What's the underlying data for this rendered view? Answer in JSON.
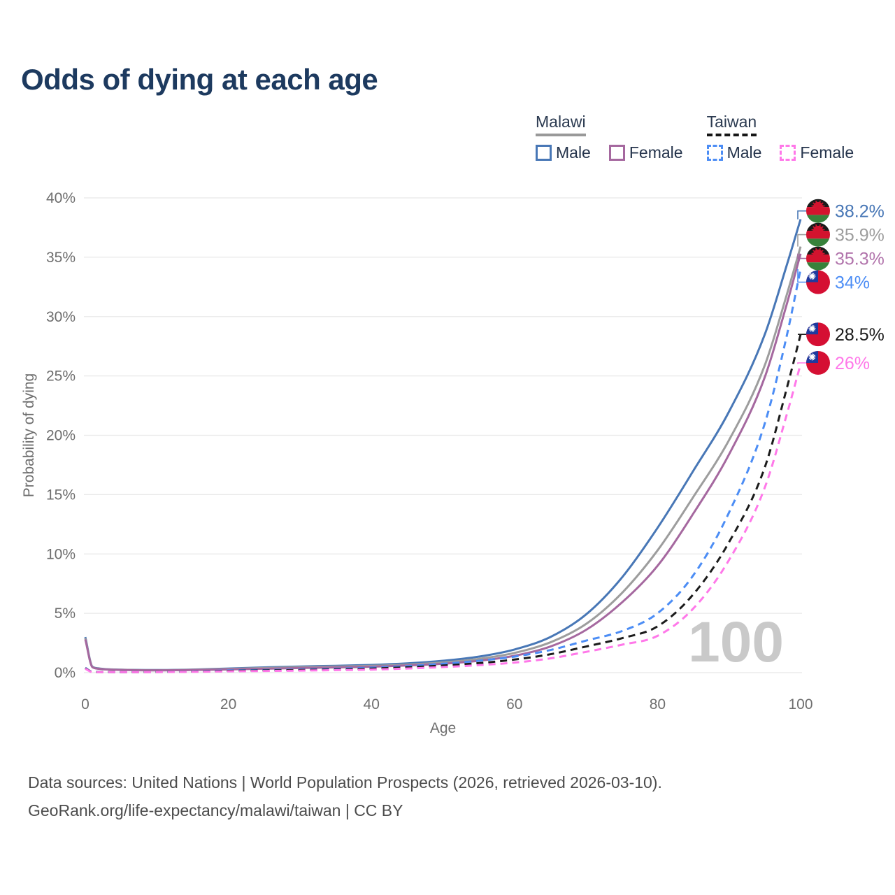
{
  "title": "Odds of dying at each age",
  "legend": {
    "groups": [
      {
        "name": "Malawi",
        "line_style": "solid",
        "underline_color": "#999999",
        "items": [
          {
            "label": "Male",
            "color": "#4877b6",
            "dash": false
          },
          {
            "label": "Female",
            "color": "#a5689f",
            "dash": false
          }
        ]
      },
      {
        "name": "Taiwan",
        "line_style": "dashed",
        "underline_color": "#161616",
        "items": [
          {
            "label": "Male",
            "color": "#4c8df5",
            "dash": true
          },
          {
            "label": "Female",
            "color": "#ff78e9",
            "dash": true
          }
        ]
      }
    ]
  },
  "chart_data": {
    "type": "line",
    "title": "Odds of dying at each age",
    "xlabel": "Age",
    "ylabel": "Probability of dying",
    "xlim": [
      0,
      100
    ],
    "ylim": [
      0,
      40
    ],
    "x_ticks": [
      0,
      20,
      40,
      60,
      80,
      100
    ],
    "y_tick_step": 5,
    "y_tick_suffix": "%",
    "grid": "horizontal",
    "watermark": "100",
    "series": [
      {
        "name": "Malawi Male",
        "country": "Malawi",
        "sex": "male",
        "color": "#4877b6",
        "dash": false,
        "flag": "malawi",
        "end_label": "38.2%",
        "label_color": "#4877b6",
        "label_pos": 38.9,
        "points": [
          [
            0,
            3.0
          ],
          [
            1,
            0.5
          ],
          [
            2,
            0.35
          ],
          [
            5,
            0.25
          ],
          [
            10,
            0.22
          ],
          [
            15,
            0.26
          ],
          [
            20,
            0.35
          ],
          [
            25,
            0.44
          ],
          [
            30,
            0.52
          ],
          [
            35,
            0.58
          ],
          [
            40,
            0.65
          ],
          [
            45,
            0.78
          ],
          [
            50,
            1.0
          ],
          [
            55,
            1.35
          ],
          [
            60,
            1.95
          ],
          [
            65,
            3.0
          ],
          [
            70,
            4.9
          ],
          [
            75,
            8.0
          ],
          [
            80,
            12.2
          ],
          [
            85,
            17.0
          ],
          [
            90,
            22.0
          ],
          [
            95,
            28.5
          ],
          [
            98,
            34.2
          ],
          [
            100,
            38.2
          ]
        ]
      },
      {
        "name": "Malawi Both Sexes",
        "country": "Malawi",
        "sex": "both",
        "color": "#9d9d9d",
        "dash": false,
        "flag": "malawi",
        "end_label": "35.9%",
        "label_color": "#9d9d9d",
        "label_pos": 36.9,
        "points": [
          [
            0,
            2.9
          ],
          [
            1,
            0.48
          ],
          [
            2,
            0.33
          ],
          [
            5,
            0.24
          ],
          [
            10,
            0.2
          ],
          [
            15,
            0.24
          ],
          [
            20,
            0.31
          ],
          [
            25,
            0.39
          ],
          [
            30,
            0.46
          ],
          [
            35,
            0.51
          ],
          [
            40,
            0.57
          ],
          [
            45,
            0.68
          ],
          [
            50,
            0.86
          ],
          [
            55,
            1.16
          ],
          [
            60,
            1.66
          ],
          [
            65,
            2.55
          ],
          [
            70,
            4.1
          ],
          [
            75,
            6.7
          ],
          [
            80,
            10.3
          ],
          [
            85,
            14.8
          ],
          [
            90,
            19.6
          ],
          [
            95,
            25.9
          ],
          [
            98,
            31.7
          ],
          [
            100,
            35.9
          ]
        ]
      },
      {
        "name": "Malawi Female",
        "country": "Malawi",
        "sex": "female",
        "color": "#a5689f",
        "dash": false,
        "flag": "malawi",
        "end_label": "35.3%",
        "label_color": "#b173ab",
        "label_pos": 34.9,
        "points": [
          [
            0,
            2.8
          ],
          [
            1,
            0.46
          ],
          [
            2,
            0.32
          ],
          [
            5,
            0.23
          ],
          [
            10,
            0.19
          ],
          [
            15,
            0.22
          ],
          [
            20,
            0.27
          ],
          [
            25,
            0.33
          ],
          [
            30,
            0.39
          ],
          [
            35,
            0.44
          ],
          [
            40,
            0.5
          ],
          [
            45,
            0.6
          ],
          [
            50,
            0.75
          ],
          [
            55,
            1.0
          ],
          [
            60,
            1.42
          ],
          [
            65,
            2.2
          ],
          [
            70,
            3.6
          ],
          [
            75,
            5.9
          ],
          [
            80,
            9.0
          ],
          [
            85,
            13.4
          ],
          [
            90,
            18.4
          ],
          [
            95,
            24.9
          ],
          [
            98,
            30.9
          ],
          [
            100,
            35.3
          ]
        ]
      },
      {
        "name": "Taiwan Male",
        "country": "Taiwan",
        "sex": "male",
        "color": "#4c8df5",
        "dash": true,
        "flag": "taiwan",
        "end_label": "34%",
        "label_color": "#4c8df5",
        "label_pos": 32.9,
        "points": [
          [
            0,
            0.4
          ],
          [
            1,
            0.07
          ],
          [
            5,
            0.05
          ],
          [
            10,
            0.06
          ],
          [
            15,
            0.1
          ],
          [
            20,
            0.18
          ],
          [
            25,
            0.22
          ],
          [
            30,
            0.27
          ],
          [
            35,
            0.33
          ],
          [
            40,
            0.42
          ],
          [
            45,
            0.55
          ],
          [
            50,
            0.75
          ],
          [
            55,
            1.0
          ],
          [
            60,
            1.35
          ],
          [
            65,
            1.9
          ],
          [
            70,
            2.7
          ],
          [
            75,
            3.5
          ],
          [
            80,
            5.0
          ],
          [
            85,
            8.2
          ],
          [
            90,
            13.5
          ],
          [
            95,
            21.0
          ],
          [
            98,
            28.2
          ],
          [
            100,
            34.0
          ]
        ]
      },
      {
        "name": "Taiwan Both Sexes",
        "country": "Taiwan",
        "sex": "both",
        "color": "#1b1b1b",
        "dash": true,
        "flag": "taiwan",
        "end_label": "28.5%",
        "label_color": "#1b1b1b",
        "label_pos": 28.5,
        "points": [
          [
            0,
            0.37
          ],
          [
            1,
            0.06
          ],
          [
            5,
            0.045
          ],
          [
            10,
            0.055
          ],
          [
            15,
            0.09
          ],
          [
            20,
            0.15
          ],
          [
            25,
            0.18
          ],
          [
            30,
            0.22
          ],
          [
            35,
            0.27
          ],
          [
            40,
            0.34
          ],
          [
            45,
            0.45
          ],
          [
            50,
            0.6
          ],
          [
            55,
            0.8
          ],
          [
            60,
            1.1
          ],
          [
            65,
            1.55
          ],
          [
            70,
            2.2
          ],
          [
            75,
            2.9
          ],
          [
            80,
            3.9
          ],
          [
            85,
            6.6
          ],
          [
            90,
            11.0
          ],
          [
            95,
            17.3
          ],
          [
            98,
            23.8
          ],
          [
            100,
            28.5
          ]
        ]
      },
      {
        "name": "Taiwan Female",
        "country": "Taiwan",
        "sex": "female",
        "color": "#ff78e9",
        "dash": true,
        "flag": "taiwan",
        "end_label": "26%",
        "label_color": "#ff78e9",
        "label_pos": 26.1,
        "points": [
          [
            0,
            0.33
          ],
          [
            1,
            0.05
          ],
          [
            5,
            0.04
          ],
          [
            10,
            0.05
          ],
          [
            15,
            0.07
          ],
          [
            20,
            0.11
          ],
          [
            25,
            0.14
          ],
          [
            30,
            0.17
          ],
          [
            35,
            0.21
          ],
          [
            40,
            0.26
          ],
          [
            45,
            0.35
          ],
          [
            50,
            0.47
          ],
          [
            55,
            0.63
          ],
          [
            60,
            0.85
          ],
          [
            65,
            1.2
          ],
          [
            70,
            1.75
          ],
          [
            75,
            2.35
          ],
          [
            80,
            3.1
          ],
          [
            85,
            5.4
          ],
          [
            90,
            9.5
          ],
          [
            95,
            15.6
          ],
          [
            98,
            21.6
          ],
          [
            100,
            26.0
          ]
        ]
      }
    ]
  },
  "footer": {
    "line1": "Data sources: United Nations | World Population Prospects (2026, retrieved 2026-03-10).",
    "line2": "GeoRank.org/life-expectancy/malawi/taiwan | CC BY"
  }
}
